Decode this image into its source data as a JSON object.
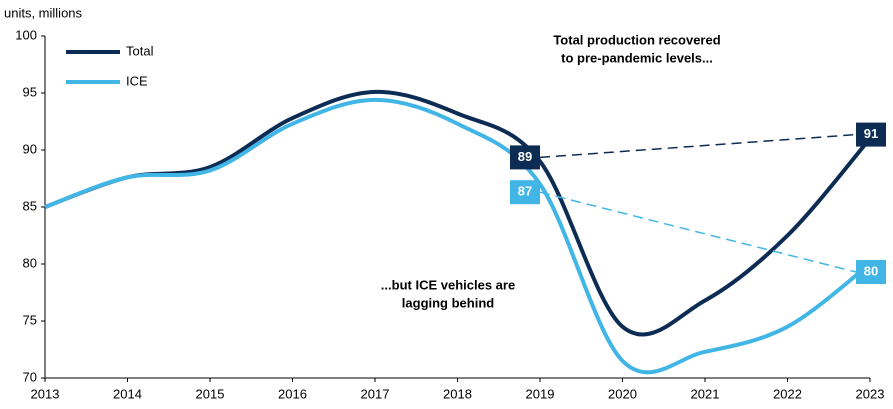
{
  "chart_data": {
    "type": "line",
    "y_axis_label": "units, millions",
    "x": [
      2013,
      2014,
      2015,
      2016,
      2017,
      2018,
      2019,
      2020,
      2021,
      2022,
      2023
    ],
    "xlim": [
      2013,
      2023
    ],
    "xticks": [
      2013,
      2014,
      2015,
      2016,
      2017,
      2018,
      2019,
      2020,
      2021,
      2022,
      2023
    ],
    "ylim": [
      70,
      100
    ],
    "yticks": [
      70,
      75,
      80,
      85,
      90,
      95,
      100
    ],
    "grid": false,
    "legend": "upper left",
    "callout_x": [
      2019,
      2023
    ],
    "series": [
      {
        "name": "Total",
        "color": "#0d2c54",
        "values": [
          85,
          87.6,
          88.5,
          92.8,
          95.1,
          93.2,
          89,
          74.5,
          76.8,
          82.5,
          91
        ]
      },
      {
        "name": "ICE",
        "color": "#41b6e6",
        "values": [
          85,
          87.6,
          88.2,
          92.3,
          94.4,
          92.3,
          87,
          71.5,
          72.3,
          74.5,
          80
        ]
      }
    ],
    "annotations": [
      {
        "lines": [
          "Total production recovered",
          "to pre-pandemic levels..."
        ]
      },
      {
        "lines": [
          "...but ICE vehicles are",
          "lagging behind"
        ]
      }
    ]
  }
}
